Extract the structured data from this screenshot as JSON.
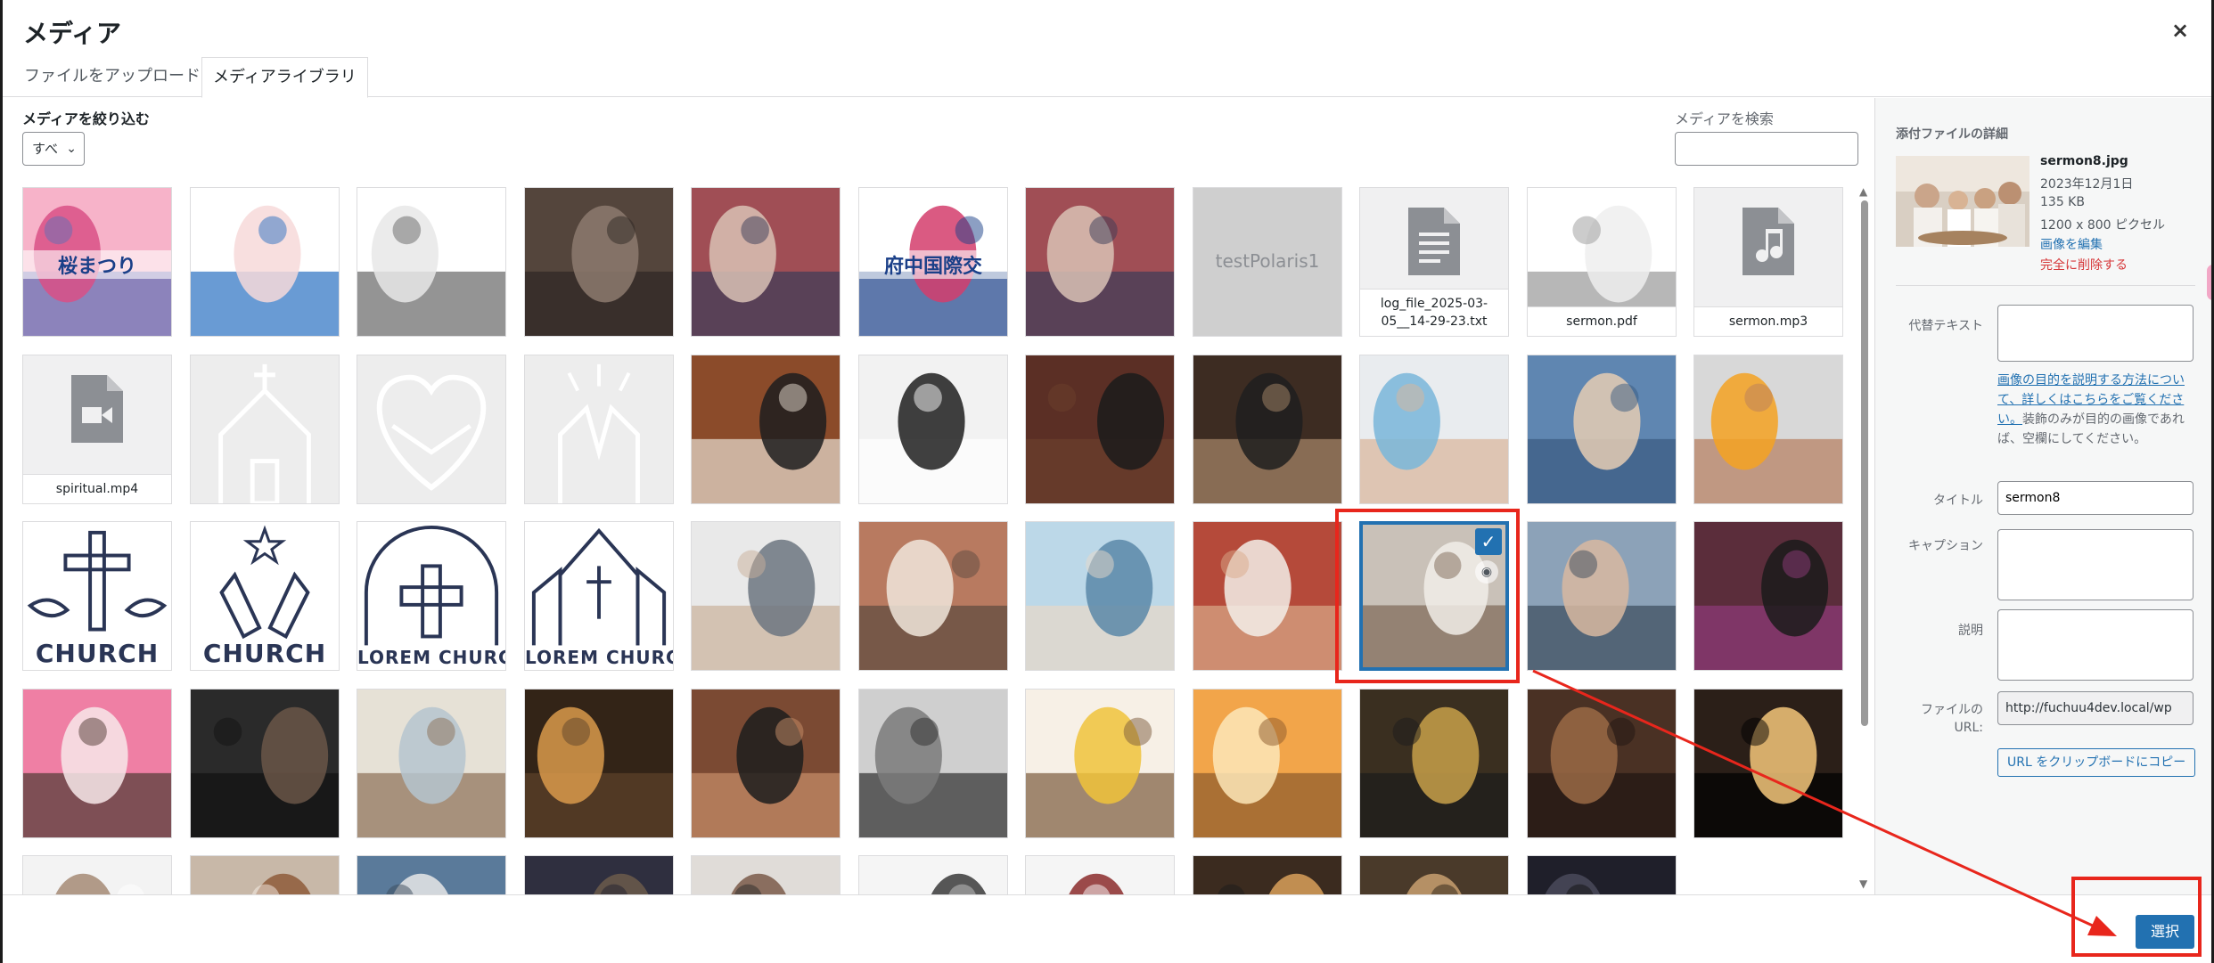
{
  "modal": {
    "title": "メディア",
    "close_glyph": "×"
  },
  "tabs": [
    {
      "label": "ファイルをアップロード"
    },
    {
      "label": "メディアライブラリ"
    }
  ],
  "toolbar": {
    "filter_label": "メディアを絞り込む",
    "filter_value": "すべ",
    "search_label": "メディアを検索",
    "search_value": ""
  },
  "grid": {
    "items": [
      {
        "kind": "image",
        "colors": [
          "#f7b3c9",
          "#d95086",
          "#5e6fb5"
        ],
        "text": "桜まつり"
      },
      {
        "kind": "image",
        "colors": [
          "#ffffff",
          "#f7d9d9",
          "#2a70c2"
        ],
        "text": ""
      },
      {
        "kind": "image",
        "colors": [
          "#ffffff",
          "#e8e8e8",
          "#666666"
        ],
        "text": ""
      },
      {
        "kind": "image",
        "colors": [
          "#54453c",
          "#8d7a6f",
          "#2e2723"
        ],
        "text": ""
      },
      {
        "kind": "image",
        "colors": [
          "#a04e55",
          "#d9c2b5",
          "#3a3c58"
        ],
        "text": ""
      },
      {
        "kind": "image",
        "colors": [
          "#ffffff",
          "#d43d6c",
          "#1a3f88"
        ],
        "text": "府中国際交"
      },
      {
        "kind": "image",
        "colors": [
          "#a04e55",
          "#d9c2b5",
          "#3a3c58"
        ],
        "text": ""
      },
      {
        "kind": "placeholder",
        "text": "testPolaris1"
      },
      {
        "kind": "file",
        "icon": "document",
        "text": "log_file_2025-03-05__14-29-23.txt"
      },
      {
        "kind": "image",
        "colors": [
          "#ffffff",
          "#eeeeee",
          "#999999"
        ],
        "text": "sermon.pdf"
      },
      {
        "kind": "file",
        "icon": "audio",
        "text": "sermon.mp3"
      },
      {
        "kind": "file",
        "icon": "video",
        "text": "spiritual.mp4"
      },
      {
        "kind": "outline",
        "icon": "church-outline",
        "text": ""
      },
      {
        "kind": "outline",
        "icon": "heart-hands-outline",
        "text": ""
      },
      {
        "kind": "outline",
        "icon": "praying-hands-outline",
        "text": ""
      },
      {
        "kind": "image",
        "colors": [
          "#8b4b2a",
          "#1d1d1f",
          "#e8ded1"
        ],
        "text": ""
      },
      {
        "kind": "image",
        "colors": [
          "#f2f2f2",
          "#1f1f1f",
          "#ffffff"
        ],
        "text": ""
      },
      {
        "kind": "image",
        "colors": [
          "#5b2f25",
          "#1b1b1b",
          "#6b3f2c"
        ],
        "text": ""
      },
      {
        "kind": "image",
        "colors": [
          "#3d2c22",
          "#1f1f1f",
          "#a8886a"
        ],
        "text": ""
      },
      {
        "kind": "image",
        "colors": [
          "#e9ecef",
          "#79b6d9",
          "#d9b59a"
        ],
        "text": ""
      },
      {
        "kind": "image",
        "colors": [
          "#5f86b1",
          "#e5ccb4",
          "#3a5a80"
        ],
        "text": ""
      },
      {
        "kind": "image",
        "colors": [
          "#d8d8d8",
          "#f4a222",
          "#b77e5e"
        ],
        "text": ""
      },
      {
        "kind": "logo",
        "icon": "church-cross-doves",
        "text": "CHURCH"
      },
      {
        "kind": "logo",
        "icon": "church-hands-star",
        "text": "CHURCH"
      },
      {
        "kind": "logo",
        "icon": "church-arch-cross",
        "text": "LOREM CHURCH"
      },
      {
        "kind": "logo",
        "icon": "church-building",
        "text": "LOREM CHURCH"
      },
      {
        "kind": "image",
        "colors": [
          "#e9e9e9",
          "#6c7580",
          "#c9b09a"
        ],
        "text": ""
      },
      {
        "kind": "image",
        "colors": [
          "#b87a60",
          "#f0e6dc",
          "#5b4a3f"
        ],
        "text": ""
      },
      {
        "kind": "image",
        "colors": [
          "#bcd8e8",
          "#5a88a8",
          "#e8d8c8"
        ],
        "text": ""
      },
      {
        "kind": "image",
        "colors": [
          "#b54a3a",
          "#f3efe9",
          "#d9a989"
        ],
        "text": ""
      },
      {
        "kind": "image",
        "colors": [
          "#c9c1b8",
          "#f1ede7",
          "#7d6756"
        ],
        "text": "",
        "selected": true
      },
      {
        "kind": "image",
        "colors": [
          "#8ca2b8",
          "#d8b8a0",
          "#3b4b5b"
        ],
        "text": ""
      },
      {
        "kind": "image",
        "colors": [
          "#5b2d3b",
          "#1b1b1b",
          "#8e3b7a"
        ],
        "text": ""
      },
      {
        "kind": "image",
        "colors": [
          "#ef7fa4",
          "#f7e7ea",
          "#4f3a33"
        ],
        "text": ""
      },
      {
        "kind": "image",
        "colors": [
          "#2a2a2a",
          "#6a5648",
          "#111111"
        ],
        "text": ""
      },
      {
        "kind": "image",
        "colors": [
          "#e6e1d6",
          "#b5c4cf",
          "#8b6f55"
        ],
        "text": ""
      },
      {
        "kind": "image",
        "colors": [
          "#332417",
          "#d99a4b",
          "#5e432b"
        ],
        "text": ""
      },
      {
        "kind": "image",
        "colors": [
          "#7b4a33",
          "#1d1d1d",
          "#c98f6a"
        ],
        "text": ""
      },
      {
        "kind": "image",
        "colors": [
          "#cfcfcf",
          "#7a7a7a",
          "#2d2d2d"
        ],
        "text": ""
      },
      {
        "kind": "image",
        "colors": [
          "#f7f0e6",
          "#f0c33b",
          "#7b5a3c"
        ],
        "text": ""
      },
      {
        "kind": "image",
        "colors": [
          "#f2a54a",
          "#fde6b8",
          "#8b5a2b"
        ],
        "text": ""
      },
      {
        "kind": "image",
        "colors": [
          "#3a2f20",
          "#c8a04a",
          "#1b1b1b"
        ],
        "text": ""
      },
      {
        "kind": "image",
        "colors": [
          "#4a3124",
          "#9a6a45",
          "#1f1612"
        ],
        "text": ""
      },
      {
        "kind": "image",
        "colors": [
          "#2b1f18",
          "#f5c77a",
          "#000000"
        ],
        "text": ""
      },
      {
        "kind": "image",
        "colors": [
          "#f3f3f3",
          "#a48a74",
          "#ffffff"
        ],
        "text": ""
      },
      {
        "kind": "image",
        "colors": [
          "#c8b8a8",
          "#8e5a3a",
          "#f8f0e8"
        ],
        "text": ""
      },
      {
        "kind": "image",
        "colors": [
          "#5a7a9a",
          "#e8e8e8",
          "#3a4a5a"
        ],
        "text": ""
      },
      {
        "kind": "image",
        "colors": [
          "#2f2f3f",
          "#6b5b4b",
          "#1f1f2f"
        ],
        "text": ""
      },
      {
        "kind": "image",
        "colors": [
          "#e0dcd8",
          "#7a5a4a",
          "#2a2a2a"
        ],
        "text": ""
      },
      {
        "kind": "image",
        "colors": [
          "#f5f5f5",
          "#3a3a3a",
          "#c8c8c8"
        ],
        "text": ""
      },
      {
        "kind": "image",
        "colors": [
          "#f5f5f5",
          "#8b2b2b",
          "#ffffff"
        ],
        "text": ""
      },
      {
        "kind": "image",
        "colors": [
          "#3b2b1f",
          "#d9a05a",
          "#1b1b1b"
        ],
        "text": ""
      },
      {
        "kind": "image",
        "colors": [
          "#4a3a2a",
          "#c8a070",
          "#2a1f15"
        ],
        "text": ""
      },
      {
        "kind": "image",
        "colors": [
          "#1f1f2a",
          "#4a4a5a",
          "#111111"
        ],
        "text": ""
      }
    ]
  },
  "sidebar": {
    "heading": "添付ファイルの詳細",
    "file_name": "sermon8.jpg",
    "date": "2023年12月1日",
    "size": "135 KB",
    "dimensions": "1200 x 800 ピクセル",
    "edit_link": "画像を編集",
    "delete_link": "完全に削除する",
    "alt_label": "代替テキスト",
    "alt_value": "",
    "alt_help_link": "画像の目的を説明する方法について、詳しくはこちらをご覧ください。",
    "alt_help_rest": "装飾のみが目的の画像であれば、空欄にしてください。",
    "title_label": "タイトル",
    "title_value": "sermon8",
    "caption_label": "キャプション",
    "caption_value": "",
    "desc_label": "説明",
    "desc_value": "",
    "url_label": "ファイルの URL:",
    "url_value": "http://fuchuu4dev.local/wp",
    "copy_button": "URL をクリップボードにコピー"
  },
  "footer": {
    "select_button": "選択"
  },
  "colors": {
    "accent": "#2271b1",
    "danger": "#d63638",
    "annotation": "#e8261c"
  }
}
